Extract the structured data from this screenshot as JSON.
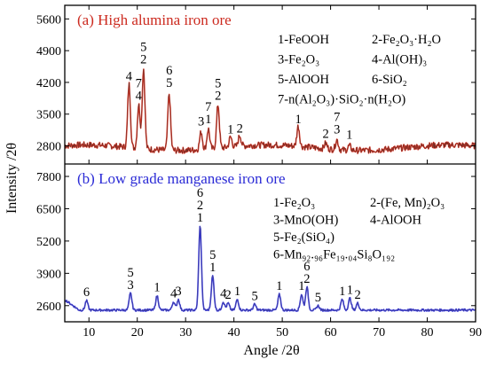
{
  "chart_data": {
    "type": "line",
    "xlabel": "Angle /2θ",
    "ylabel": "Intensity /2θ",
    "xlim": [
      5,
      90
    ],
    "x_ticks": [
      10,
      20,
      30,
      40,
      50,
      60,
      70,
      80,
      90
    ],
    "panels": [
      {
        "id": "a",
        "title": "(a) High alumina iron ore",
        "title_color": "#cc2a1f",
        "line_color": "#d83a2a",
        "trace_color": "#222222",
        "ylim": [
          2400,
          5900
        ],
        "y_ticks": [
          2800,
          3500,
          4200,
          4900,
          5600
        ],
        "baseline": 2760,
        "legend": [
          [
            "1-FeOOH",
            "2-Fe₂O₃·H₂O"
          ],
          [
            "3-Fe₂O₃",
            "4-Al(OH)₃"
          ],
          [
            "5-AlOOH",
            "6-SiO₂"
          ],
          [
            "7-n(Al₂O₃)·SiO₂·n(H₂O)",
            ""
          ]
        ],
        "peaks": [
          {
            "x": 18.3,
            "y": 4150,
            "labels": [
              "4"
            ]
          },
          {
            "x": 20.3,
            "y": 3720,
            "labels": [
              "7",
              "4"
            ]
          },
          {
            "x": 21.3,
            "y": 4520,
            "labels": [
              "5",
              "2"
            ]
          },
          {
            "x": 26.6,
            "y": 4000,
            "labels": [
              "6",
              "5"
            ]
          },
          {
            "x": 33.2,
            "y": 3150,
            "labels": [
              "3"
            ]
          },
          {
            "x": 34.7,
            "y": 3200,
            "labels": [
              "7",
              "1"
            ]
          },
          {
            "x": 36.7,
            "y": 3720,
            "labels": [
              "5",
              "2"
            ]
          },
          {
            "x": 39.3,
            "y": 2980,
            "labels": [
              "1"
            ]
          },
          {
            "x": 41.2,
            "y": 3000,
            "labels": [
              "2"
            ]
          },
          {
            "x": 53.3,
            "y": 3200,
            "labels": [
              "1"
            ]
          },
          {
            "x": 59.0,
            "y": 2880,
            "labels": [
              "2"
            ]
          },
          {
            "x": 61.3,
            "y": 2980,
            "labels": [
              "7",
              "3"
            ]
          },
          {
            "x": 63.9,
            "y": 2860,
            "labels": [
              "1"
            ]
          }
        ]
      },
      {
        "id": "b",
        "title": "(b) Low grade manganese iron ore",
        "title_color": "#2b2bd6",
        "line_color": "#3333dd",
        "trace_color": "#555555",
        "ylim": [
          1950,
          8300
        ],
        "y_ticks": [
          2600,
          3900,
          5200,
          6500,
          7800
        ],
        "baseline": 2420,
        "legend": [
          [
            "1-Fe₂O₃",
            "2-(Fe, Mn)₂O₃"
          ],
          [
            "3-MnO(OH)",
            "4-AlOOH"
          ],
          [
            "5-Fe₂(SiO₄)",
            ""
          ],
          [
            "6-Mn₉₂.₉₆Fe₁₉.₀₄Si₈O₁₉₂",
            ""
          ]
        ],
        "peaks": [
          {
            "x": 9.5,
            "y": 2800,
            "labels": [
              "6"
            ]
          },
          {
            "x": 18.6,
            "y": 3100,
            "labels": [
              "5",
              "3"
            ]
          },
          {
            "x": 24.1,
            "y": 3000,
            "labels": [
              "1"
            ]
          },
          {
            "x": 27.5,
            "y": 2750,
            "labels": [
              "4"
            ]
          },
          {
            "x": 28.5,
            "y": 2850,
            "labels": [
              "3"
            ]
          },
          {
            "x": 33.0,
            "y": 5800,
            "labels": [
              "6",
              "2",
              "1"
            ]
          },
          {
            "x": 35.6,
            "y": 3800,
            "labels": [
              "5",
              "1"
            ]
          },
          {
            "x": 37.8,
            "y": 2750,
            "labels": [
              "4"
            ]
          },
          {
            "x": 38.8,
            "y": 2700,
            "labels": [
              "2"
            ]
          },
          {
            "x": 40.7,
            "y": 2850,
            "labels": [
              "1"
            ]
          },
          {
            "x": 44.3,
            "y": 2650,
            "labels": [
              "5"
            ]
          },
          {
            "x": 49.4,
            "y": 3050,
            "labels": [
              "1"
            ]
          },
          {
            "x": 54.0,
            "y": 3050,
            "labels": [
              "1"
            ]
          },
          {
            "x": 55.1,
            "y": 3350,
            "labels": [
              "6",
              "2"
            ]
          },
          {
            "x": 57.4,
            "y": 2600,
            "labels": [
              "5"
            ]
          },
          {
            "x": 62.4,
            "y": 2850,
            "labels": [
              "1"
            ]
          },
          {
            "x": 64.0,
            "y": 2900,
            "labels": [
              "1"
            ]
          },
          {
            "x": 65.6,
            "y": 2700,
            "labels": [
              "2"
            ]
          }
        ]
      }
    ]
  }
}
